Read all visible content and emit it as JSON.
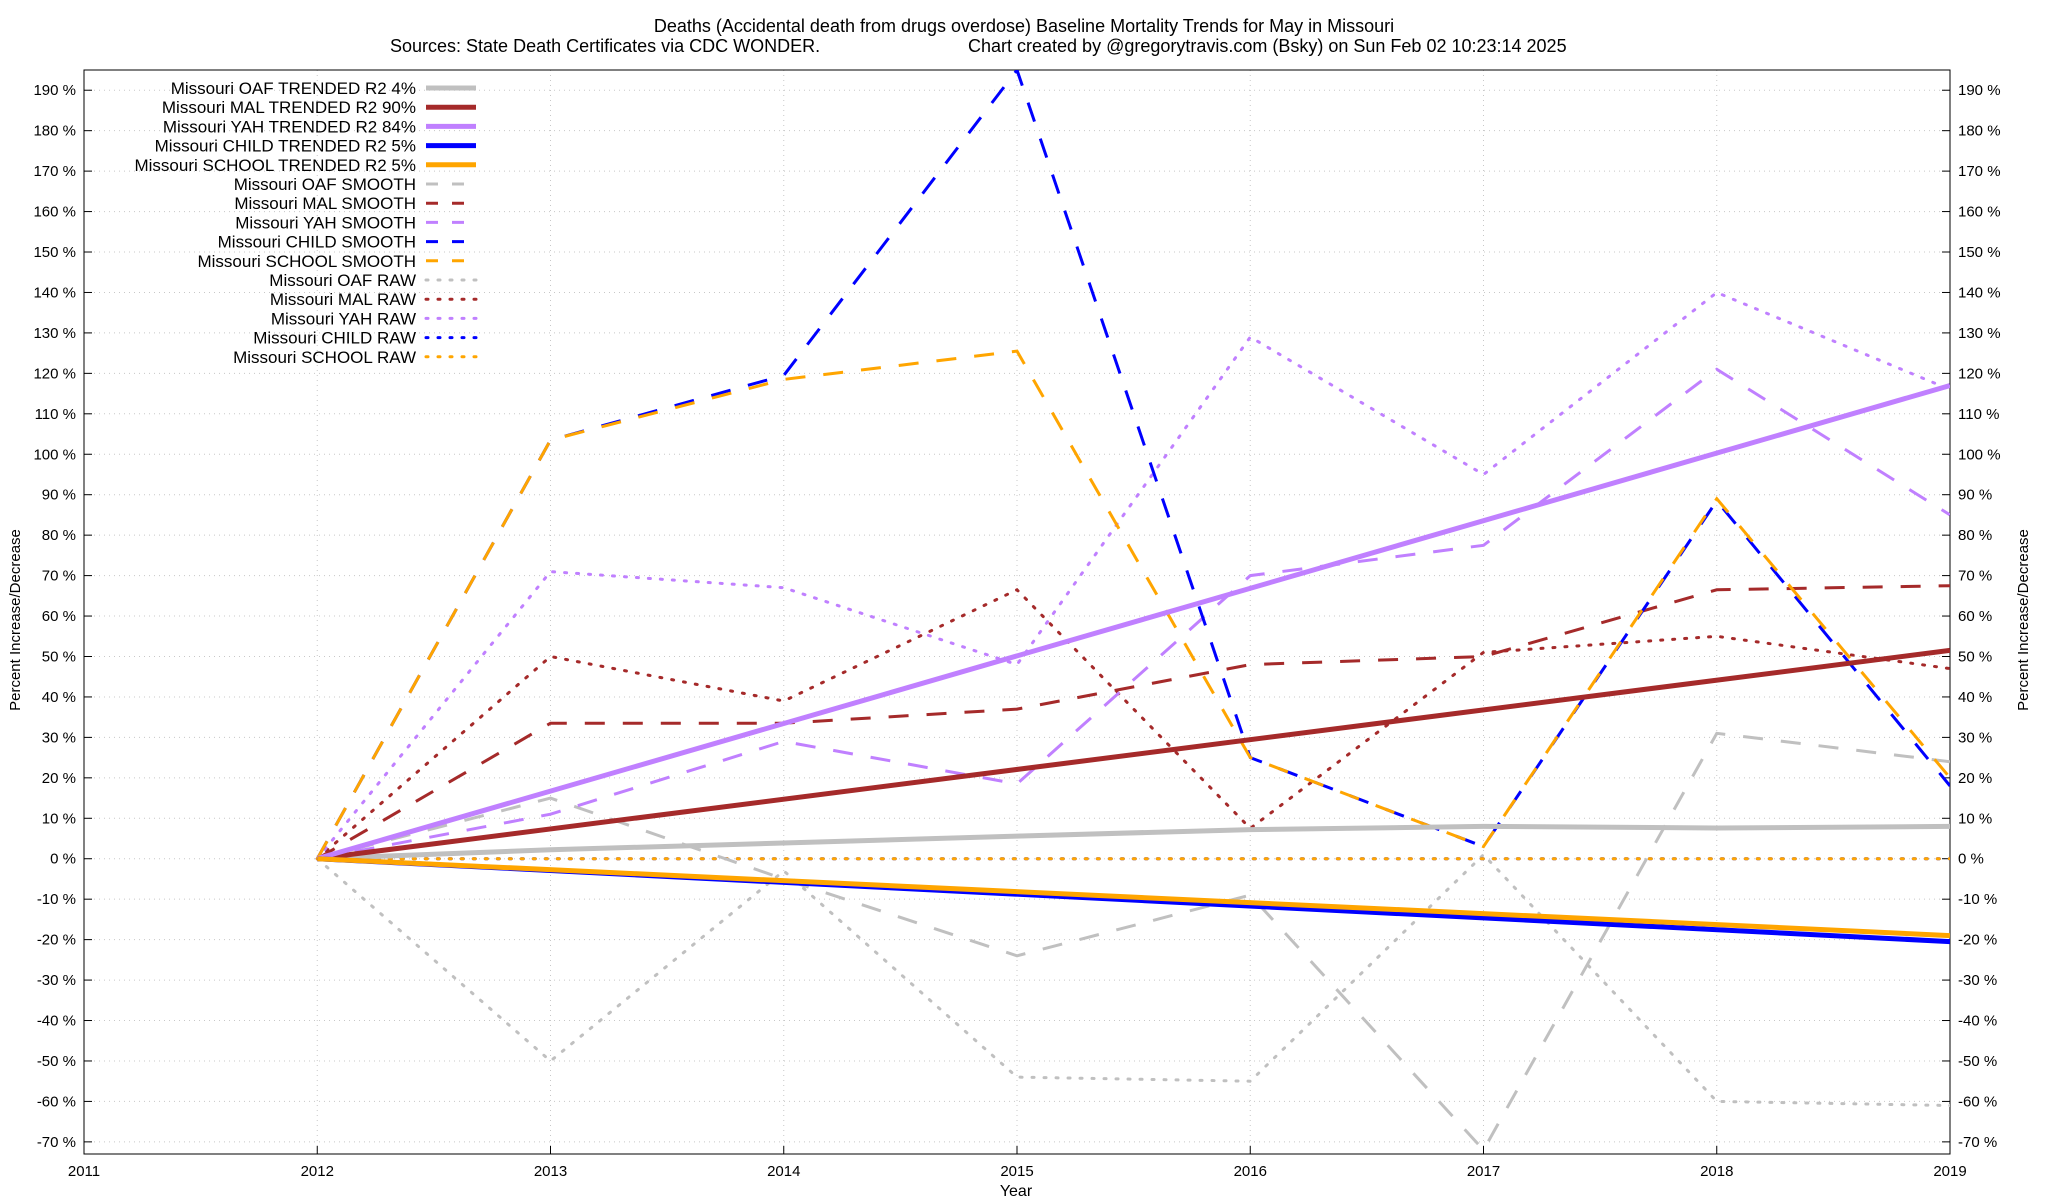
{
  "chart_data": {
    "type": "line",
    "title": "Deaths (Accidental death from drugs overdose)  Baseline Mortality Trends for May in Missouri",
    "subtitle_left": "Sources: State Death Certificates via CDC WONDER.",
    "subtitle_right": "Chart created by @gregorytravis.com (Bsky) on Sun Feb 02 10:23:14 2025",
    "xlabel": "Year",
    "ylabel": "Percent Increase/Decrease",
    "xlim": [
      2011,
      2019
    ],
    "ylim": [
      -73,
      195
    ],
    "x_ticks": [
      "2011",
      "2012",
      "2013",
      "2014",
      "2015",
      "2016",
      "2017",
      "2018",
      "2019"
    ],
    "y_ticks": [
      {
        "v": 190,
        "label": "190 %"
      },
      {
        "v": 180,
        "label": "180 %"
      },
      {
        "v": 170,
        "label": "170 %"
      },
      {
        "v": 160,
        "label": "160 %"
      },
      {
        "v": 150,
        "label": "150 %"
      },
      {
        "v": 140,
        "label": "140 %"
      },
      {
        "v": 130,
        "label": "130 %"
      },
      {
        "v": 120,
        "label": "120 %"
      },
      {
        "v": 110,
        "label": "110 %"
      },
      {
        "v": 100,
        "label": "100 %"
      },
      {
        "v": 90,
        "label": "90 %"
      },
      {
        "v": 80,
        "label": "80 %"
      },
      {
        "v": 70,
        "label": "70 %"
      },
      {
        "v": 60,
        "label": "60 %"
      },
      {
        "v": 50,
        "label": "50 %"
      },
      {
        "v": 40,
        "label": "40 %"
      },
      {
        "v": 30,
        "label": "30 %"
      },
      {
        "v": 20,
        "label": "20 %"
      },
      {
        "v": 10,
        "label": "10 %"
      },
      {
        "v": 0,
        "label": "0 %"
      },
      {
        "v": -10,
        "label": "-10 %"
      },
      {
        "v": -20,
        "label": "-20 %"
      },
      {
        "v": -30,
        "label": "-30 %"
      },
      {
        "v": -40,
        "label": "-40 %"
      },
      {
        "v": -50,
        "label": "-50 %"
      },
      {
        "v": -60,
        "label": "-60 %"
      },
      {
        "v": -70,
        "label": "-70 %"
      }
    ],
    "grid": true,
    "legend_position": "top-left",
    "series": [
      {
        "name": "Missouri OAF TRENDED R2   4%",
        "color": "#c0c0c0",
        "style": "trend",
        "x": [
          2012,
          2013,
          2014,
          2015,
          2016,
          2017,
          2018,
          2019
        ],
        "y": [
          0,
          2.2,
          3.9,
          5.6,
          7.2,
          8,
          7.6,
          8
        ]
      },
      {
        "name": "Missouri MAL TRENDED R2  90%",
        "color": "#a52a2a",
        "style": "trend",
        "x": [
          2012,
          2019
        ],
        "y": [
          0,
          51.5
        ]
      },
      {
        "name": "Missouri YAH TRENDED R2  84%",
        "color": "#c080ff",
        "style": "trend",
        "x": [
          2012,
          2019
        ],
        "y": [
          0,
          117
        ]
      },
      {
        "name": "Missouri CHILD TRENDED R2   5%",
        "color": "#0000ff",
        "style": "trend",
        "x": [
          2012,
          2019
        ],
        "y": [
          0,
          -20.5
        ]
      },
      {
        "name": "Missouri SCHOOL TRENDED R2   5%",
        "color": "#ffa500",
        "style": "trend",
        "x": [
          2012,
          2019
        ],
        "y": [
          0,
          -19
        ]
      },
      {
        "name": "Missouri OAF SMOOTH",
        "color": "#c0c0c0",
        "style": "smooth",
        "x": [
          2012,
          2013,
          2014,
          2015,
          2016,
          2017,
          2018,
          2019
        ],
        "y": [
          0,
          15,
          -5,
          -24,
          -9,
          -72,
          31,
          24
        ]
      },
      {
        "name": "Missouri MAL SMOOTH",
        "color": "#a52a2a",
        "style": "smooth",
        "x": [
          2012,
          2013,
          2014,
          2015,
          2016,
          2017,
          2018,
          2019
        ],
        "y": [
          0,
          33.5,
          33.5,
          37,
          48,
          50,
          66.5,
          67.5
        ]
      },
      {
        "name": "Missouri YAH SMOOTH",
        "color": "#c080ff",
        "style": "smooth",
        "x": [
          2012,
          2013,
          2014,
          2015,
          2016,
          2017,
          2018,
          2019
        ],
        "y": [
          0,
          11,
          29,
          18.5,
          70,
          77.5,
          121,
          85
        ]
      },
      {
        "name": "Missouri CHILD SMOOTH",
        "color": "#0000ff",
        "style": "smooth",
        "x": [
          2012,
          2013,
          2014,
          2015,
          2016,
          2017,
          2018,
          2019
        ],
        "y": [
          0,
          103.5,
          119.5,
          195,
          25,
          3,
          88.5,
          18
        ]
      },
      {
        "name": "Missouri SCHOOL SMOOTH",
        "color": "#ffa500",
        "style": "smooth",
        "x": [
          2012,
          2013,
          2014,
          2015,
          2016,
          2017,
          2018,
          2019
        ],
        "y": [
          0,
          103.5,
          118.5,
          125.5,
          25,
          3,
          89,
          20
        ]
      },
      {
        "name": "Missouri OAF RAW",
        "color": "#c0c0c0",
        "style": "raw",
        "x": [
          2012,
          2013,
          2014,
          2015,
          2016,
          2017,
          2018,
          2019
        ],
        "y": [
          0,
          -50,
          -3,
          -54,
          -55,
          1,
          -60,
          -61
        ]
      },
      {
        "name": "Missouri MAL RAW",
        "color": "#a52a2a",
        "style": "raw",
        "x": [
          2012,
          2013,
          2014,
          2015,
          2016,
          2017,
          2018,
          2019
        ],
        "y": [
          0,
          50,
          39,
          66.5,
          7.5,
          51,
          55,
          47
        ]
      },
      {
        "name": "Missouri YAH RAW",
        "color": "#c080ff",
        "style": "raw",
        "x": [
          2012,
          2013,
          2014,
          2015,
          2016,
          2017,
          2018,
          2019
        ],
        "y": [
          0,
          71,
          67,
          48,
          129,
          95,
          140,
          116
        ]
      },
      {
        "name": "Missouri CHILD RAW",
        "color": "#0000ff",
        "style": "raw",
        "x": [
          2012,
          2013,
          2014,
          2015,
          2016,
          2017,
          2018,
          2019
        ],
        "y": [
          0,
          0,
          0,
          0,
          0,
          0,
          0,
          0
        ]
      },
      {
        "name": "Missouri SCHOOL RAW",
        "color": "#ffa500",
        "style": "raw",
        "x": [
          2012,
          2013,
          2014,
          2015,
          2016,
          2017,
          2018,
          2019
        ],
        "y": [
          0,
          0,
          0,
          0,
          0,
          0,
          0,
          0
        ]
      }
    ]
  }
}
